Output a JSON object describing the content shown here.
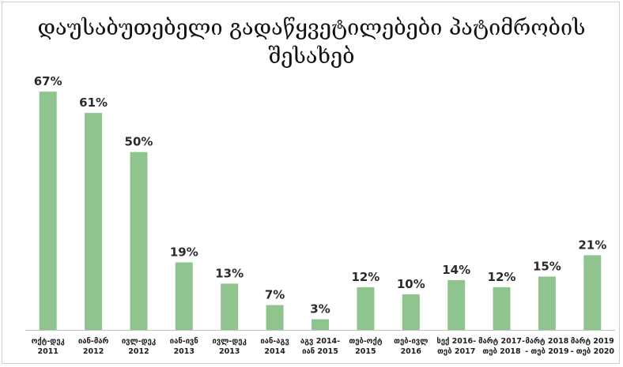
{
  "chart_data": {
    "type": "bar",
    "title_lines": [
      "დაუსაბუთებელი გადაწყვეტილებები პატიმრობის",
      "შესახებ"
    ],
    "categories": [
      [
        "ოქტ-დეკ",
        "2011"
      ],
      [
        "იან-მარ",
        "2012"
      ],
      [
        "ივლ-დეკ",
        "2012"
      ],
      [
        "იან-ივნ",
        "2013"
      ],
      [
        "ივლ-დეკ",
        "2013"
      ],
      [
        "იან-აგვ",
        "2014"
      ],
      [
        "აგვ 2014-",
        "იან 2015"
      ],
      [
        "თებ-ოქტ",
        "2015"
      ],
      [
        "თებ-ივლ",
        "2016"
      ],
      [
        "სექ 2016-",
        "თებ 2017"
      ],
      [
        "მარტ 2017-",
        "თებ 2018"
      ],
      [
        "მარტ 2018",
        "- თებ 2019"
      ],
      [
        "მარტ 2019",
        "- თებ 2020"
      ]
    ],
    "values": [
      67,
      61,
      50,
      19,
      13,
      7,
      3,
      12,
      10,
      14,
      12,
      15,
      21
    ],
    "value_labels": [
      "67%",
      "61%",
      "50%",
      "19%",
      "13%",
      "7%",
      "3%",
      "12%",
      "10%",
      "14%",
      "12%",
      "15%",
      "21%"
    ],
    "ylim": [
      0,
      75
    ],
    "bar_color": "#8fc48f",
    "axis_color": "#bfbfbf",
    "grid": false,
    "legend": false
  }
}
